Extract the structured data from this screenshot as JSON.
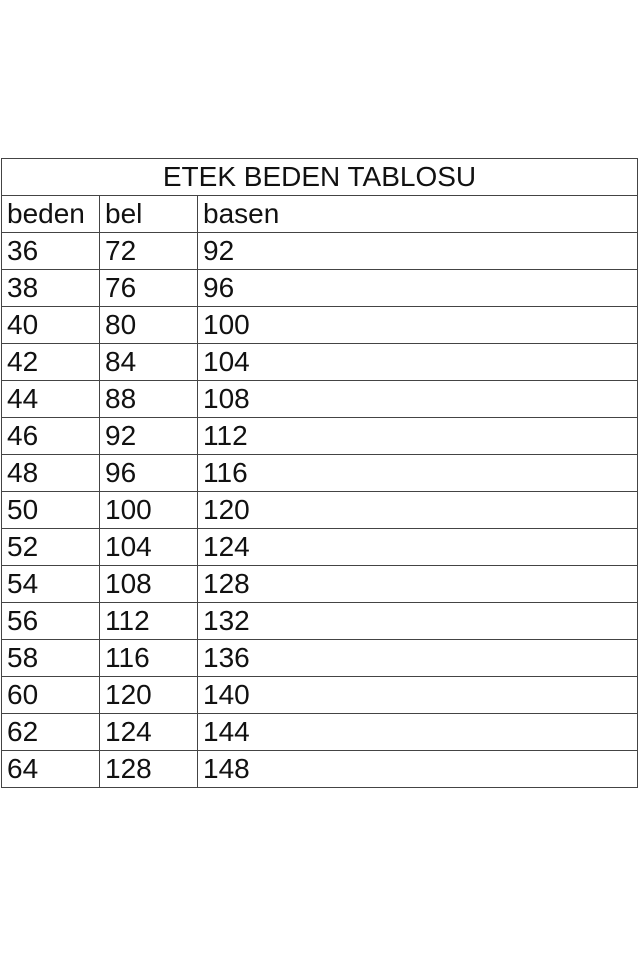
{
  "table": {
    "title": "ETEK BEDEN TABLOSU",
    "headers": [
      "beden",
      "bel",
      "basen"
    ],
    "rows": [
      [
        "36",
        "72",
        "92"
      ],
      [
        "38",
        "76",
        "96"
      ],
      [
        "40",
        "80",
        "100"
      ],
      [
        "42",
        "84",
        "104"
      ],
      [
        "44",
        "88",
        "108"
      ],
      [
        "46",
        "92",
        "112"
      ],
      [
        "48",
        "96",
        "116"
      ],
      [
        "50",
        "100",
        "120"
      ],
      [
        "52",
        "104",
        "124"
      ],
      [
        "54",
        "108",
        "128"
      ],
      [
        "56",
        "112",
        "132"
      ],
      [
        "58",
        "116",
        "136"
      ],
      [
        "60",
        "120",
        "140"
      ],
      [
        "62",
        "124",
        "144"
      ],
      [
        "64",
        "128",
        "148"
      ]
    ]
  }
}
